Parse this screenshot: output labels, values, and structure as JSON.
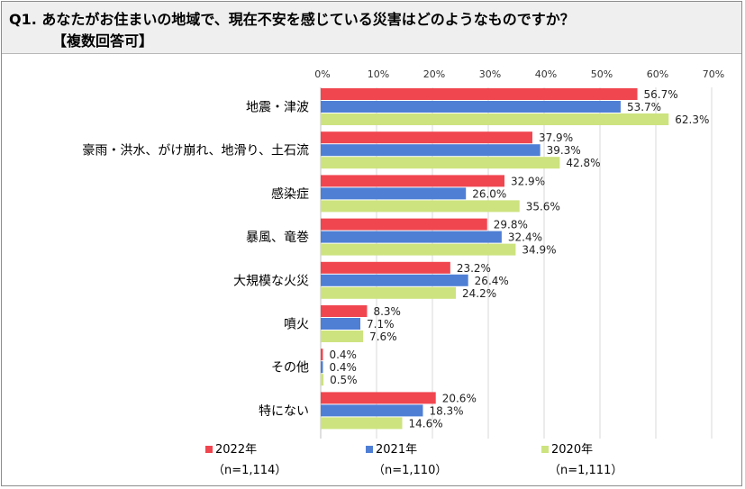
{
  "question": {
    "title": "Q1. あなたがお住まいの地域で、現在不安を感じている災害はどのようなものですか？",
    "note": "【複数回答可】"
  },
  "colors": {
    "2022": "#f04650",
    "2021": "#4f7fd5",
    "2020": "#cde37f"
  },
  "chart_data": {
    "type": "bar",
    "orientation": "horizontal",
    "categories": [
      "地震・津波",
      "豪雨・洪水、がけ崩れ、地滑り、土石流",
      "感染症",
      "暴風、竜巻",
      "大規模な火災",
      "噴火",
      "その他",
      "特にない"
    ],
    "series": [
      {
        "name": "2022年",
        "n": "（n=1,114）",
        "values": [
          56.7,
          37.9,
          32.9,
          29.8,
          23.2,
          8.3,
          0.4,
          20.6
        ]
      },
      {
        "name": "2021年",
        "n": "（n=1,110）",
        "values": [
          53.7,
          39.3,
          26.0,
          32.4,
          26.4,
          7.1,
          0.4,
          18.3
        ]
      },
      {
        "name": "2020年",
        "n": "（n=1,111）",
        "values": [
          62.3,
          42.8,
          35.6,
          34.9,
          24.2,
          7.6,
          0.5,
          14.6
        ]
      }
    ],
    "xlim": [
      0,
      70
    ],
    "xticks": [
      "0%",
      "10%",
      "20%",
      "30%",
      "40%",
      "50%",
      "60%",
      "70%"
    ],
    "grid": true,
    "legend": "bottom",
    "value_suffix": "%"
  }
}
